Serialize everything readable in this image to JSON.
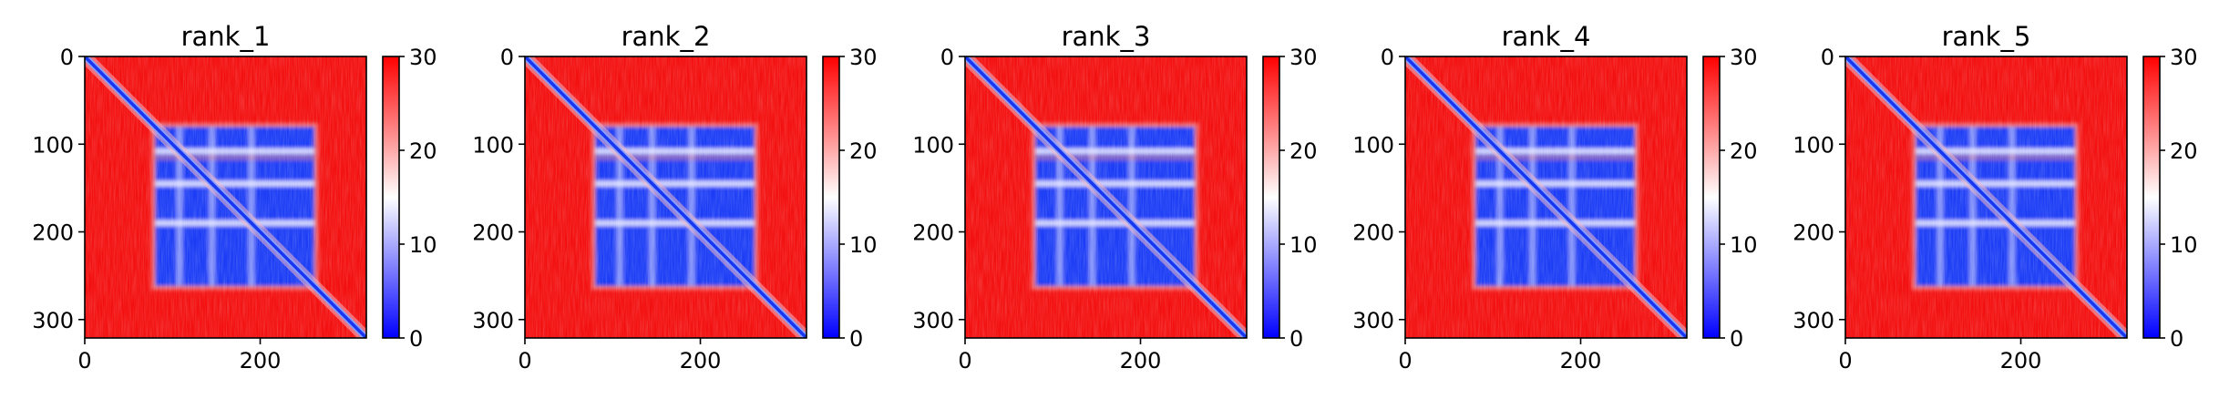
{
  "chart_data": [
    {
      "type": "heatmap",
      "title": "rank_1",
      "x_ticks": [
        "0",
        "200"
      ],
      "x_tick_values": [
        0,
        200
      ],
      "y_ticks": [
        "0",
        "100",
        "200",
        "300"
      ],
      "y_tick_values": [
        0,
        100,
        200,
        300
      ],
      "xlim": [
        0,
        321
      ],
      "ylim": [
        321,
        0
      ],
      "colorbar": {
        "ticks": [
          "0",
          "10",
          "20",
          "30"
        ],
        "tick_values": [
          0,
          10,
          20,
          30
        ],
        "range": [
          0,
          30
        ],
        "colormap": "bwr"
      },
      "structure": {
        "diagonal": true,
        "block_range": [
          80,
          262
        ],
        "gap_rows": [
          108,
          145,
          190
        ]
      }
    },
    {
      "type": "heatmap",
      "title": "rank_2",
      "x_ticks": [
        "0",
        "200"
      ],
      "x_tick_values": [
        0,
        200
      ],
      "y_ticks": [
        "0",
        "100",
        "200",
        "300"
      ],
      "y_tick_values": [
        0,
        100,
        200,
        300
      ],
      "xlim": [
        0,
        321
      ],
      "ylim": [
        321,
        0
      ],
      "colorbar": {
        "ticks": [
          "0",
          "10",
          "20",
          "30"
        ],
        "tick_values": [
          0,
          10,
          20,
          30
        ],
        "range": [
          0,
          30
        ],
        "colormap": "bwr"
      },
      "structure": {
        "diagonal": true,
        "block_range": [
          80,
          262
        ],
        "gap_rows": [
          108,
          145,
          190
        ]
      }
    },
    {
      "type": "heatmap",
      "title": "rank_3",
      "x_ticks": [
        "0",
        "200"
      ],
      "x_tick_values": [
        0,
        200
      ],
      "y_ticks": [
        "0",
        "100",
        "200",
        "300"
      ],
      "y_tick_values": [
        0,
        100,
        200,
        300
      ],
      "xlim": [
        0,
        321
      ],
      "ylim": [
        321,
        0
      ],
      "colorbar": {
        "ticks": [
          "0",
          "10",
          "20",
          "30"
        ],
        "tick_values": [
          0,
          10,
          20,
          30
        ],
        "range": [
          0,
          30
        ],
        "colormap": "bwr"
      },
      "structure": {
        "diagonal": true,
        "block_range": [
          80,
          262
        ],
        "gap_rows": [
          108,
          145,
          190
        ]
      }
    },
    {
      "type": "heatmap",
      "title": "rank_4",
      "x_ticks": [
        "0",
        "200"
      ],
      "x_tick_values": [
        0,
        200
      ],
      "y_ticks": [
        "0",
        "100",
        "200",
        "300"
      ],
      "y_tick_values": [
        0,
        100,
        200,
        300
      ],
      "xlim": [
        0,
        321
      ],
      "ylim": [
        321,
        0
      ],
      "colorbar": {
        "ticks": [
          "0",
          "10",
          "20",
          "30"
        ],
        "tick_values": [
          0,
          10,
          20,
          30
        ],
        "range": [
          0,
          30
        ],
        "colormap": "bwr"
      },
      "structure": {
        "diagonal": true,
        "block_range": [
          80,
          262
        ],
        "gap_rows": [
          108,
          145,
          190
        ]
      }
    },
    {
      "type": "heatmap",
      "title": "rank_5",
      "x_ticks": [
        "0",
        "200"
      ],
      "x_tick_values": [
        0,
        200
      ],
      "y_ticks": [
        "0",
        "100",
        "200",
        "300"
      ],
      "y_tick_values": [
        0,
        100,
        200,
        300
      ],
      "xlim": [
        0,
        321
      ],
      "ylim": [
        321,
        0
      ],
      "colorbar": {
        "ticks": [
          "0",
          "10",
          "20",
          "30"
        ],
        "tick_values": [
          0,
          10,
          20,
          30
        ],
        "range": [
          0,
          30
        ],
        "colormap": "bwr"
      },
      "structure": {
        "diagonal": true,
        "block_range": [
          80,
          262
        ],
        "gap_rows": [
          108,
          145,
          190
        ]
      }
    }
  ],
  "colors": {
    "low": "#0000ff",
    "mid": "#ffffff",
    "high": "#ff0000",
    "block": "#1a3cf5",
    "background": "#f31010",
    "axis": "#000000"
  }
}
